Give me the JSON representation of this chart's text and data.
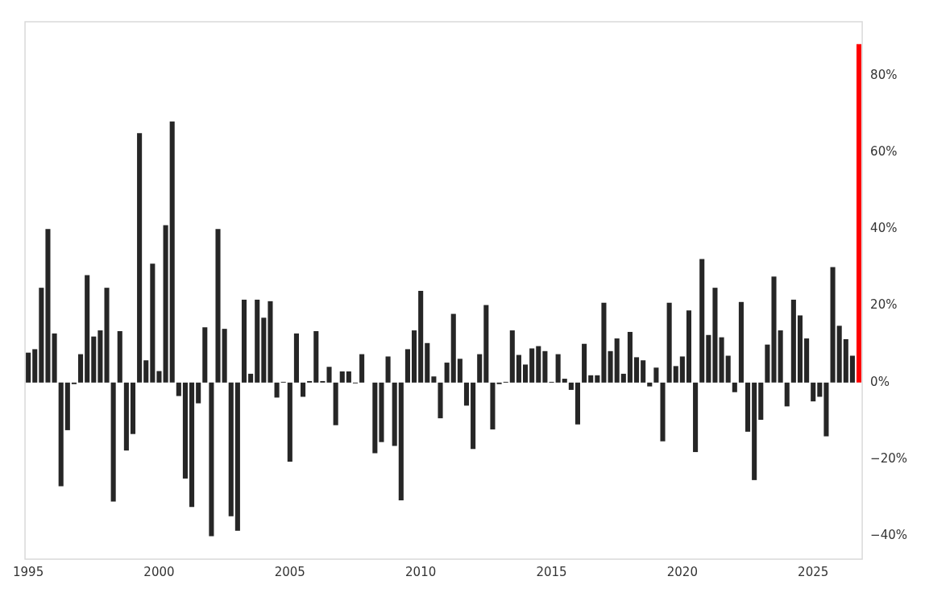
{
  "chart_data": {
    "type": "bar",
    "categories": [
      "1995",
      null,
      null,
      null,
      null,
      null,
      null,
      null,
      null,
      null,
      null,
      null,
      null,
      null,
      null,
      null,
      null,
      null,
      null,
      null,
      "2000",
      null,
      null,
      null,
      null,
      null,
      null,
      null,
      null,
      null,
      null,
      null,
      null,
      null,
      null,
      null,
      null,
      null,
      null,
      null,
      "2005",
      null,
      null,
      null,
      null,
      null,
      null,
      null,
      null,
      null,
      null,
      null,
      null,
      null,
      null,
      null,
      null,
      null,
      null,
      null,
      "2010",
      null,
      null,
      null,
      null,
      null,
      null,
      null,
      null,
      null,
      null,
      null,
      null,
      null,
      null,
      null,
      null,
      null,
      null,
      null,
      "2015",
      null,
      null,
      null,
      null,
      null,
      null,
      null,
      null,
      null,
      null,
      null,
      null,
      null,
      null,
      null,
      null,
      null,
      null,
      null,
      "2020",
      null,
      null,
      null,
      null,
      null,
      null,
      null,
      null,
      null,
      null,
      null,
      null,
      null,
      null,
      null,
      null,
      null,
      null,
      null,
      "2025",
      null,
      null,
      null,
      null,
      null,
      null,
      null
    ],
    "values": [
      7.8,
      8.7,
      24.7,
      40,
      12.8,
      -27,
      -12.4,
      -0.4,
      7.4,
      28,
      12,
      13.6,
      24.7,
      -31,
      13.4,
      -17.7,
      -13.4,
      65,
      5.8,
      31,
      3,
      41,
      68,
      -3.5,
      -25,
      -32.4,
      -5.4,
      14.4,
      -40,
      40,
      14,
      -34.8,
      -38.6,
      21.6,
      2.3,
      21.6,
      16.9,
      21.2,
      -3.9,
      0.2,
      -20.6,
      12.8,
      -3.7,
      0.4,
      13.4,
      0.4,
      4.1,
      -11.1,
      2.9,
      2.9,
      -0.2,
      7.4,
      0,
      -18.4,
      -15.5,
      6.8,
      -16.5,
      -30.7,
      8.7,
      13.6,
      23.9,
      10.3,
      1.6,
      -9.3,
      5.2,
      17.9,
      6.2,
      -6,
      -17.3,
      7.4,
      20.2,
      -12.2,
      -0.4,
      0.2,
      13.6,
      7.2,
      4.7,
      8.9,
      9.5,
      8.2,
      0.2,
      7.4,
      1,
      -1.9,
      -10.9,
      10.1,
      1.9,
      1.9,
      20.8,
      8.2,
      11.5,
      2.3,
      13.2,
      6.6,
      5.8,
      -1,
      3.9,
      -15.3,
      20.8,
      4.3,
      6.8,
      18.8,
      -18.1,
      32.2,
      12.4,
      24.7,
      11.8,
      7,
      -2.5,
      21,
      -12.8,
      -25.4,
      -9.7,
      9.9,
      27.6,
      13.6,
      -6.2,
      21.6,
      17.5,
      11.5,
      -4.9,
      -3.7,
      -14,
      30.1,
      14.8,
      11.3,
      7,
      88.2
    ],
    "colors": [
      "#262626",
      "#262626",
      "#262626",
      "#262626",
      "#262626",
      "#262626",
      "#262626",
      "#262626",
      "#262626",
      "#262626",
      "#262626",
      "#262626",
      "#262626",
      "#262626",
      "#262626",
      "#262626",
      "#262626",
      "#262626",
      "#262626",
      "#262626",
      "#262626",
      "#262626",
      "#262626",
      "#262626",
      "#262626",
      "#262626",
      "#262626",
      "#262626",
      "#262626",
      "#262626",
      "#262626",
      "#262626",
      "#262626",
      "#262626",
      "#262626",
      "#262626",
      "#262626",
      "#262626",
      "#262626",
      "#262626",
      "#262626",
      "#262626",
      "#262626",
      "#262626",
      "#262626",
      "#262626",
      "#262626",
      "#262626",
      "#262626",
      "#262626",
      "#262626",
      "#262626",
      "#262626",
      "#262626",
      "#262626",
      "#262626",
      "#262626",
      "#262626",
      "#262626",
      "#262626",
      "#262626",
      "#262626",
      "#262626",
      "#262626",
      "#262626",
      "#262626",
      "#262626",
      "#262626",
      "#262626",
      "#262626",
      "#262626",
      "#262626",
      "#262626",
      "#262626",
      "#262626",
      "#262626",
      "#262626",
      "#262626",
      "#262626",
      "#262626",
      "#262626",
      "#262626",
      "#262626",
      "#262626",
      "#262626",
      "#262626",
      "#262626",
      "#262626",
      "#262626",
      "#262626",
      "#262626",
      "#262626",
      "#262626",
      "#262626",
      "#262626",
      "#262626",
      "#262626",
      "#262626",
      "#262626",
      "#262626",
      "#262626",
      "#262626",
      "#262626",
      "#262626",
      "#262626",
      "#262626",
      "#262626",
      "#262626",
      "#262626",
      "#262626",
      "#262626",
      "#262626",
      "#262626",
      "#262626",
      "#262626",
      "#262626",
      "#262626",
      "#262626",
      "#262626",
      "#262626",
      "#262626",
      "#262626",
      "#262626",
      "#262626",
      "#262626",
      "#262626",
      "#262626",
      "#ff0000"
    ],
    "ylim": [
      -46,
      94
    ],
    "yticks": [
      {
        "value": -40,
        "label": "−40%"
      },
      {
        "value": -20,
        "label": "−20%"
      },
      {
        "value": 0,
        "label": "0%"
      },
      {
        "value": 20,
        "label": "20%"
      },
      {
        "value": 40,
        "label": "40%"
      },
      {
        "value": 60,
        "label": "60%"
      },
      {
        "value": 80,
        "label": "80%"
      }
    ],
    "grid": false,
    "legend": false
  }
}
